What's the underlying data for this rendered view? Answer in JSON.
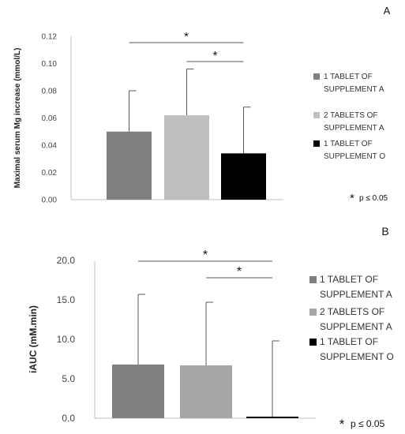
{
  "chart_data": [
    {
      "type": "bar",
      "panel_letter": "A",
      "ylabel": "Maximal serum Mg increase (mmol/L)",
      "ylim": [
        0,
        0.12
      ],
      "yticks": [
        "0.00",
        "0.02",
        "0.04",
        "0.06",
        "0.08",
        "0.10",
        "0.12"
      ],
      "categories": [
        "1 TABLET OF SUPPLEMENT A",
        "2 TABLETS OF SUPPLEMENT A",
        "1 TABLET OF SUPPLEMENT O"
      ],
      "values": [
        0.05,
        0.062,
        0.034
      ],
      "error_upper": [
        0.08,
        0.096,
        0.068
      ],
      "colors": [
        "#7f7f7f",
        "#bfbfbf",
        "#000000"
      ],
      "legend": [
        [
          "1 TABLET OF",
          "SUPPLEMENT A"
        ],
        [
          "2 TABLETS OF",
          "SUPPLEMENT A"
        ],
        [
          "1 TABLET OF",
          "SUPPLEMENT O"
        ]
      ],
      "significance": [
        {
          "from": 0,
          "to": 2,
          "label": "*"
        },
        {
          "from": 1,
          "to": 2,
          "label": "*"
        }
      ],
      "note_star": "*",
      "note_text": "p ≤ 0.05",
      "grid": false,
      "legend_position": "right"
    },
    {
      "type": "bar",
      "panel_letter": "B",
      "ylabel": "iAUC (mM.min)",
      "ylim": [
        0,
        20
      ],
      "yticks": [
        "0.0",
        "5.0",
        "10.0",
        "15.0",
        "20.0"
      ],
      "categories": [
        "1 TABLET OF SUPPLEMENT A",
        "2 TABLETS OF SUPPLEMENT A",
        "1 TABLET OF SUPPLEMENT O"
      ],
      "values": [
        6.8,
        6.7,
        0.2
      ],
      "error_upper": [
        15.7,
        14.7,
        9.8
      ],
      "colors": [
        "#808080",
        "#a6a6a6",
        "#000000"
      ],
      "legend": [
        [
          "1 TABLET OF",
          "SUPPLEMENT A"
        ],
        [
          "2 TABLETS OF",
          "SUPPLEMENT A"
        ],
        [
          "1 TABLET OF",
          "SUPPLEMENT O"
        ]
      ],
      "significance": [
        {
          "from": 0,
          "to": 2,
          "label": "*"
        },
        {
          "from": 1,
          "to": 2,
          "label": "*"
        }
      ],
      "note_star": "*",
      "note_text": "p ≤ 0.05",
      "grid": false,
      "legend_position": "right"
    }
  ]
}
